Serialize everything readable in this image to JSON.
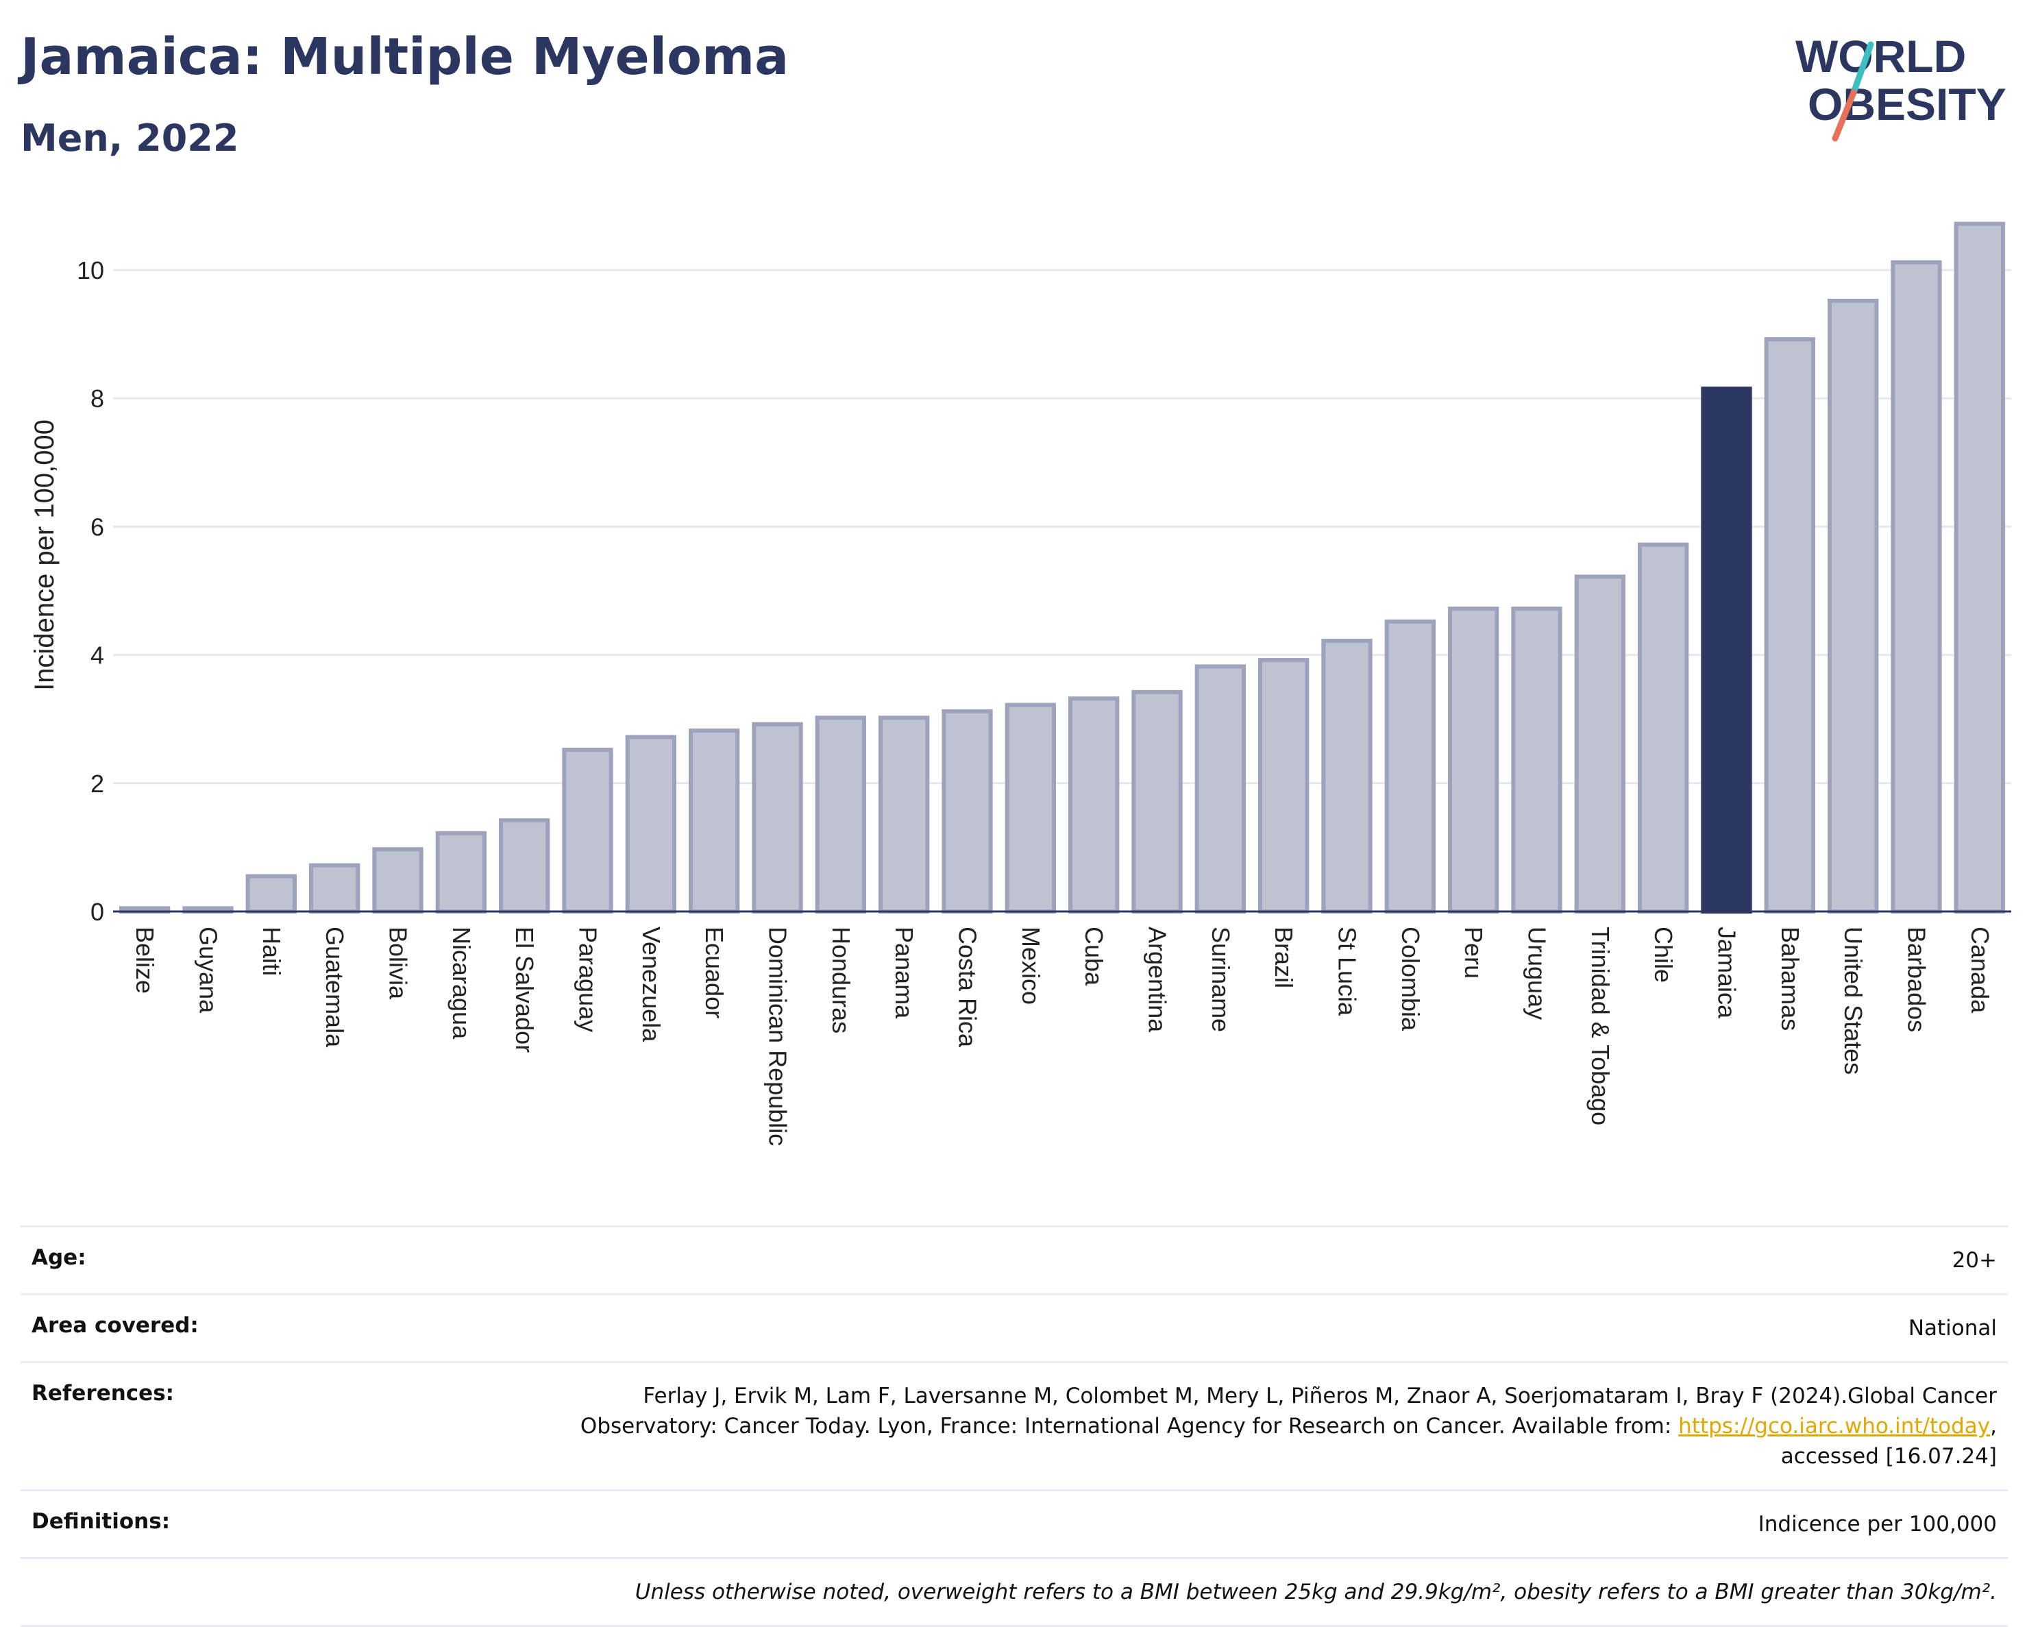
{
  "header": {
    "title": "Jamaica: Multiple Myeloma",
    "subtitle": "Men, 2022"
  },
  "logo": {
    "line1": "WORLD",
    "line2": "OBESITY",
    "colors": {
      "text": "#2b3760",
      "slash_teal": "#3cbfbf",
      "slash_coral": "#e8705a"
    }
  },
  "chart_data": {
    "type": "bar",
    "ylabel": "Incidence per 100,000",
    "ylim": [
      0,
      11
    ],
    "yticks": [
      0,
      2,
      4,
      6,
      8,
      10
    ],
    "grid": true,
    "highlight": "Jamaica",
    "colors": {
      "bar": "#bfc3d1",
      "bar_edge": "#9ea3bd",
      "highlight": "#2b3760",
      "grid": "#e6e8ee"
    },
    "categories": [
      "Belize",
      "Guyana",
      "Haiti",
      "Guatemala",
      "Bolivia",
      "Nicaragua",
      "El Salvador",
      "Paraguay",
      "Venezuela",
      "Ecuador",
      "Dominican Republic",
      "Honduras",
      "Panama",
      "Costa Rica",
      "Mexico",
      "Cuba",
      "Argentina",
      "Suriname",
      "Brazil",
      "St Lucia",
      "Colombia",
      "Peru",
      "Uruguay",
      "Trinidad & Tobago",
      "Chile",
      "Jamaica",
      "Bahamas",
      "United States",
      "Barbados",
      "Canada"
    ],
    "values": [
      0.05,
      0.05,
      0.55,
      0.72,
      0.97,
      1.22,
      1.42,
      2.52,
      2.72,
      2.82,
      2.92,
      3.02,
      3.02,
      3.12,
      3.22,
      3.32,
      3.42,
      3.82,
      3.92,
      4.22,
      4.52,
      4.72,
      4.72,
      5.22,
      5.72,
      8.15,
      8.92,
      9.52,
      10.12,
      10.72
    ]
  },
  "meta": {
    "age_label": "Age:",
    "age_value": "20+",
    "area_label": "Area covered:",
    "area_value": "National",
    "references_label": "References:",
    "references_text": "Ferlay J, Ervik M, Lam F, Laversanne M, Colombet M, Mery L, Piñeros M, Znaor A, Soerjomataram I, Bray F (2024).Global Cancer Observatory: Cancer Today. Lyon, France: International Agency for Research on Cancer. Available from:",
    "references_link": "https://gco.iarc.who.int/today",
    "references_suffix": ", accessed [16.07.24]",
    "definitions_label": "Definitions:",
    "definitions_value": "Indicence per 100,000",
    "note": "Unless otherwise noted, overweight refers to a BMI between 25kg and 29.9kg/m², obesity refers to a BMI greater than 30kg/m²."
  }
}
